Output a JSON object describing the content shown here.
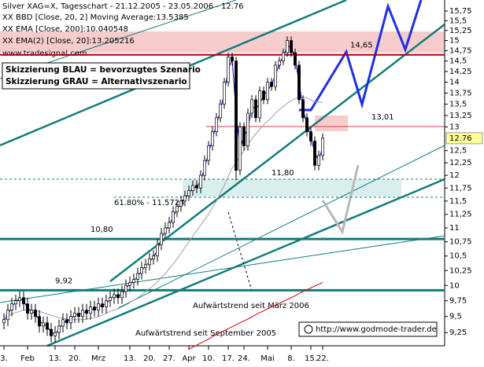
{
  "chart_data": {
    "type": "candlestick",
    "title": "Silver XAG=X, Tagesschart - 21.12.2005 - 23.05.2006 - 12.76",
    "source": "www.tradesignal.com",
    "legend_marker": "XX",
    "log": true,
    "xlim": [
      -1,
      112
    ],
    "ylim": [
      9.05,
      16.04
    ],
    "xticks": [
      {
        "value": 0,
        "label": "3."
      },
      {
        "value": 6,
        "label": "Feb"
      },
      {
        "value": 13,
        "label": "13."
      },
      {
        "value": 18,
        "label": "20."
      },
      {
        "value": 24,
        "label": "Mrz"
      },
      {
        "value": 32,
        "label": "13."
      },
      {
        "value": 37,
        "label": "20."
      },
      {
        "value": 42,
        "label": "27."
      },
      {
        "value": 47,
        "label": "Apr"
      },
      {
        "value": 52,
        "label": "10."
      },
      {
        "value": 57,
        "label": "17."
      },
      {
        "value": 61,
        "label": "24."
      },
      {
        "value": 67,
        "label": "Mai"
      },
      {
        "value": 73,
        "label": "8."
      },
      {
        "value": 78,
        "label": "15."
      },
      {
        "value": 81,
        "label": "22."
      }
    ],
    "yticks": [
      {
        "value": 9.25,
        "label": "9,25"
      },
      {
        "value": 9.5,
        "label": "9,5"
      },
      {
        "value": 9.75,
        "label": "9,75"
      },
      10,
      {
        "value": 10.25,
        "label": "10,25"
      },
      {
        "value": 10.5,
        "label": "10,5"
      },
      {
        "value": 10.75,
        "label": "10,75"
      },
      11,
      {
        "value": 11.25,
        "label": "11,25"
      },
      {
        "value": 11.5,
        "label": "11,5"
      },
      {
        "value": 11.75,
        "label": "11,75"
      },
      12,
      {
        "value": 12.25,
        "label": "12,25"
      },
      {
        "value": 12.5,
        "label": "12,5"
      },
      13,
      {
        "value": 13.25,
        "label": "13,25"
      },
      {
        "value": 13.5,
        "label": "13,5"
      },
      {
        "value": 13.75,
        "label": "13,75"
      },
      14,
      {
        "value": 14.25,
        "label": "14,25"
      },
      {
        "value": 14.5,
        "label": "14,5"
      },
      {
        "value": 14.75,
        "label": "14,75"
      },
      15,
      {
        "value": 15.25,
        "label": "15,25"
      },
      {
        "value": 15.5,
        "label": "15,5"
      },
      {
        "value": 15.75,
        "label": "15,75"
      }
    ],
    "last_price": 12.76,
    "open": [
      9.4,
      9.45,
      9.6,
      9.7,
      9.75,
      9.8,
      9.7,
      9.55,
      9.6,
      9.5,
      9.35,
      9.4,
      9.3,
      9.2,
      9.25,
      9.35,
      9.45,
      9.4,
      9.5,
      9.55,
      9.5,
      9.6,
      9.55,
      9.65,
      9.6,
      9.7,
      9.65,
      9.75,
      9.8,
      9.85,
      9.8,
      9.9,
      10.0,
      10.05,
      10.1,
      10.2,
      10.3,
      10.35,
      10.45,
      10.5,
      10.7,
      10.9,
      11.0,
      11.1,
      11.3,
      11.4,
      11.5,
      11.6,
      11.7,
      11.8,
      11.75,
      12.0,
      12.3,
      12.6,
      12.9,
      13.2,
      13.5,
      14.0,
      14.6,
      14.5,
      12.1,
      13.0,
      12.6,
      13.3,
      13.6,
      13.2,
      13.8,
      13.6,
      14.0,
      13.9,
      14.4,
      14.5,
      14.7,
      15.0,
      14.7,
      14.4,
      13.6,
      13.2,
      12.9,
      12.7,
      12.2,
      12.4
    ],
    "high": [
      9.55,
      9.7,
      9.8,
      9.85,
      9.9,
      9.9,
      9.8,
      9.7,
      9.7,
      9.6,
      9.5,
      9.5,
      9.4,
      9.35,
      9.45,
      9.55,
      9.55,
      9.6,
      9.65,
      9.65,
      9.7,
      9.7,
      9.75,
      9.75,
      9.8,
      9.8,
      9.85,
      9.9,
      9.95,
      9.95,
      10.0,
      10.1,
      10.15,
      10.2,
      10.3,
      10.4,
      10.45,
      10.55,
      10.6,
      10.8,
      11.0,
      11.1,
      11.2,
      11.4,
      11.5,
      11.6,
      11.7,
      11.8,
      11.9,
      11.9,
      12.1,
      12.4,
      12.7,
      13.0,
      13.3,
      13.6,
      14.1,
      14.7,
      14.7,
      14.6,
      13.1,
      13.1,
      13.4,
      13.7,
      13.7,
      13.9,
      13.9,
      14.1,
      14.1,
      14.5,
      14.6,
      14.8,
      15.1,
      15.1,
      14.8,
      14.5,
      13.7,
      13.3,
      13.0,
      12.8,
      12.5,
      12.86
    ],
    "low": [
      9.3,
      9.35,
      9.5,
      9.6,
      9.65,
      9.6,
      9.45,
      9.45,
      9.4,
      9.25,
      9.25,
      9.2,
      9.1,
      9.1,
      9.15,
      9.25,
      9.3,
      9.3,
      9.4,
      9.4,
      9.4,
      9.45,
      9.45,
      9.5,
      9.5,
      9.55,
      9.55,
      9.65,
      9.7,
      9.7,
      9.7,
      9.8,
      9.9,
      9.95,
      10.0,
      10.1,
      10.2,
      10.25,
      10.35,
      10.4,
      10.6,
      10.8,
      10.9,
      11.0,
      11.2,
      11.3,
      11.4,
      11.5,
      11.6,
      11.65,
      11.65,
      11.9,
      12.2,
      12.5,
      12.8,
      13.1,
      13.4,
      13.9,
      14.4,
      11.9,
      12.0,
      12.5,
      12.5,
      13.2,
      13.1,
      13.1,
      13.5,
      13.5,
      13.8,
      13.8,
      14.3,
      14.4,
      14.6,
      14.6,
      14.3,
      13.5,
      13.1,
      12.8,
      12.6,
      12.1,
      12.1,
      12.3
    ],
    "close": [
      9.45,
      9.6,
      9.7,
      9.75,
      9.8,
      9.7,
      9.55,
      9.6,
      9.5,
      9.35,
      9.4,
      9.3,
      9.2,
      9.25,
      9.35,
      9.45,
      9.4,
      9.5,
      9.55,
      9.5,
      9.6,
      9.55,
      9.65,
      9.6,
      9.7,
      9.65,
      9.75,
      9.8,
      9.85,
      9.8,
      9.9,
      10.0,
      10.05,
      10.1,
      10.2,
      10.3,
      10.35,
      10.45,
      10.5,
      10.7,
      10.9,
      11.0,
      11.1,
      11.3,
      11.4,
      11.5,
      11.6,
      11.7,
      11.8,
      11.75,
      12.0,
      12.3,
      12.6,
      12.9,
      13.2,
      13.5,
      14.0,
      14.6,
      14.5,
      12.1,
      13.0,
      12.6,
      13.3,
      13.6,
      13.2,
      13.8,
      13.6,
      14.0,
      13.9,
      14.4,
      14.5,
      14.7,
      15.0,
      14.7,
      14.4,
      13.6,
      13.2,
      12.9,
      12.7,
      12.2,
      12.4,
      12.76
    ],
    "series": [
      {
        "name": "BBD [Close, 20, 2] Moving Average:13.5385",
        "color": "#a0a0a0",
        "values": [
          9.5,
          9.52,
          9.54,
          9.56,
          9.58,
          9.6,
          9.6,
          9.6,
          9.6,
          9.58,
          9.56,
          9.54,
          9.52,
          9.5,
          9.48,
          9.47,
          9.46,
          9.45,
          9.45,
          9.45,
          9.45,
          9.46,
          9.47,
          9.48,
          9.5,
          9.52,
          9.55,
          9.58,
          9.6,
          9.62,
          9.65,
          9.68,
          9.72,
          9.76,
          9.8,
          9.85,
          9.9,
          9.95,
          10.0,
          10.06,
          10.13,
          10.2,
          10.28,
          10.36,
          10.45,
          10.55,
          10.65,
          10.75,
          10.85,
          10.95,
          11.05,
          11.15,
          11.25,
          11.38,
          11.5,
          11.65,
          11.8,
          11.98,
          12.15,
          12.25,
          12.38,
          12.5,
          12.62,
          12.75,
          12.85,
          12.95,
          13.05,
          13.12,
          13.2,
          13.3,
          13.38,
          13.45,
          13.52,
          13.58,
          13.62,
          13.65,
          13.66,
          13.64,
          13.6,
          13.56,
          13.55,
          13.54
        ]
      },
      {
        "name": "EMA [Close, 200]:10.040548",
        "color": "#cc0000",
        "values": [
          null,
          null,
          null,
          null,
          null,
          null,
          null,
          null,
          null,
          null,
          null,
          null,
          null,
          null,
          null,
          null,
          null,
          null,
          null,
          null,
          null,
          null,
          null,
          null,
          null,
          null,
          null,
          null,
          null,
          null,
          null,
          null,
          null,
          null,
          null,
          null,
          null,
          null,
          null,
          null,
          null,
          null,
          null,
          null,
          null,
          null,
          null,
          9.0,
          9.03,
          9.06,
          9.09,
          9.12,
          9.15,
          9.19,
          9.22,
          9.25,
          9.28,
          9.31,
          9.34,
          9.37,
          9.4,
          9.43,
          9.46,
          9.49,
          9.53,
          9.56,
          9.59,
          9.62,
          9.65,
          9.68,
          9.71,
          9.74,
          9.77,
          9.8,
          9.83,
          9.87,
          9.9,
          9.93,
          9.96,
          9.99,
          10.02,
          10.05
        ]
      },
      {
        "name": "EMA(2) [Close, 20]:13.205216",
        "color": "#0000cc",
        "values": [
          9.43,
          9.53,
          9.65,
          9.73,
          9.78,
          9.75,
          9.63,
          9.58,
          9.55,
          9.43,
          9.38,
          9.35,
          9.25,
          9.23,
          9.3,
          9.4,
          9.43,
          9.45,
          9.53,
          9.53,
          9.55,
          9.58,
          9.6,
          9.63,
          9.65,
          9.68,
          9.7,
          9.78,
          9.83,
          9.83,
          9.85,
          9.95,
          10.03,
          10.08,
          10.15,
          10.25,
          10.33,
          10.4,
          10.48,
          10.6,
          10.8,
          10.95,
          11.05,
          11.2,
          11.35,
          11.45,
          11.55,
          11.65,
          11.75,
          11.78,
          11.88,
          12.15,
          12.45,
          12.75,
          13.05,
          13.35,
          13.75,
          14.3,
          14.55,
          13.3,
          12.55,
          12.8,
          12.95,
          13.45,
          13.4,
          13.5,
          13.7,
          13.8,
          13.95,
          14.15,
          14.45,
          14.6,
          14.85,
          14.85,
          14.55,
          14.0,
          13.4,
          13.05,
          12.8,
          12.45,
          12.3,
          12.58
        ]
      }
    ],
    "levels": [
      {
        "value": 14.65,
        "label": "14,65",
        "color": "#b00000"
      },
      {
        "value": 13.01,
        "label": "13,01",
        "color": "#d04040"
      },
      {
        "value": 10.8,
        "label": "10,80",
        "color": "#127c7a"
      },
      {
        "value": 9.92,
        "label": "9,92",
        "color": "#127c7a"
      }
    ],
    "fibonacci": {
      "value": 11.5724,
      "label": "61.80% - 11.5724"
    },
    "support_label": "11,80",
    "scenario_box": [
      "Skizzierung BLAU = bevorzugtes Szenario",
      "Skizzierung GRAU = Alternativszenario"
    ],
    "annotations": [
      "Aufwärtstrend seit März 2006",
      "Aufwärtstrend seit September 2005"
    ],
    "credit": "http://www.godmode-trader.de"
  }
}
